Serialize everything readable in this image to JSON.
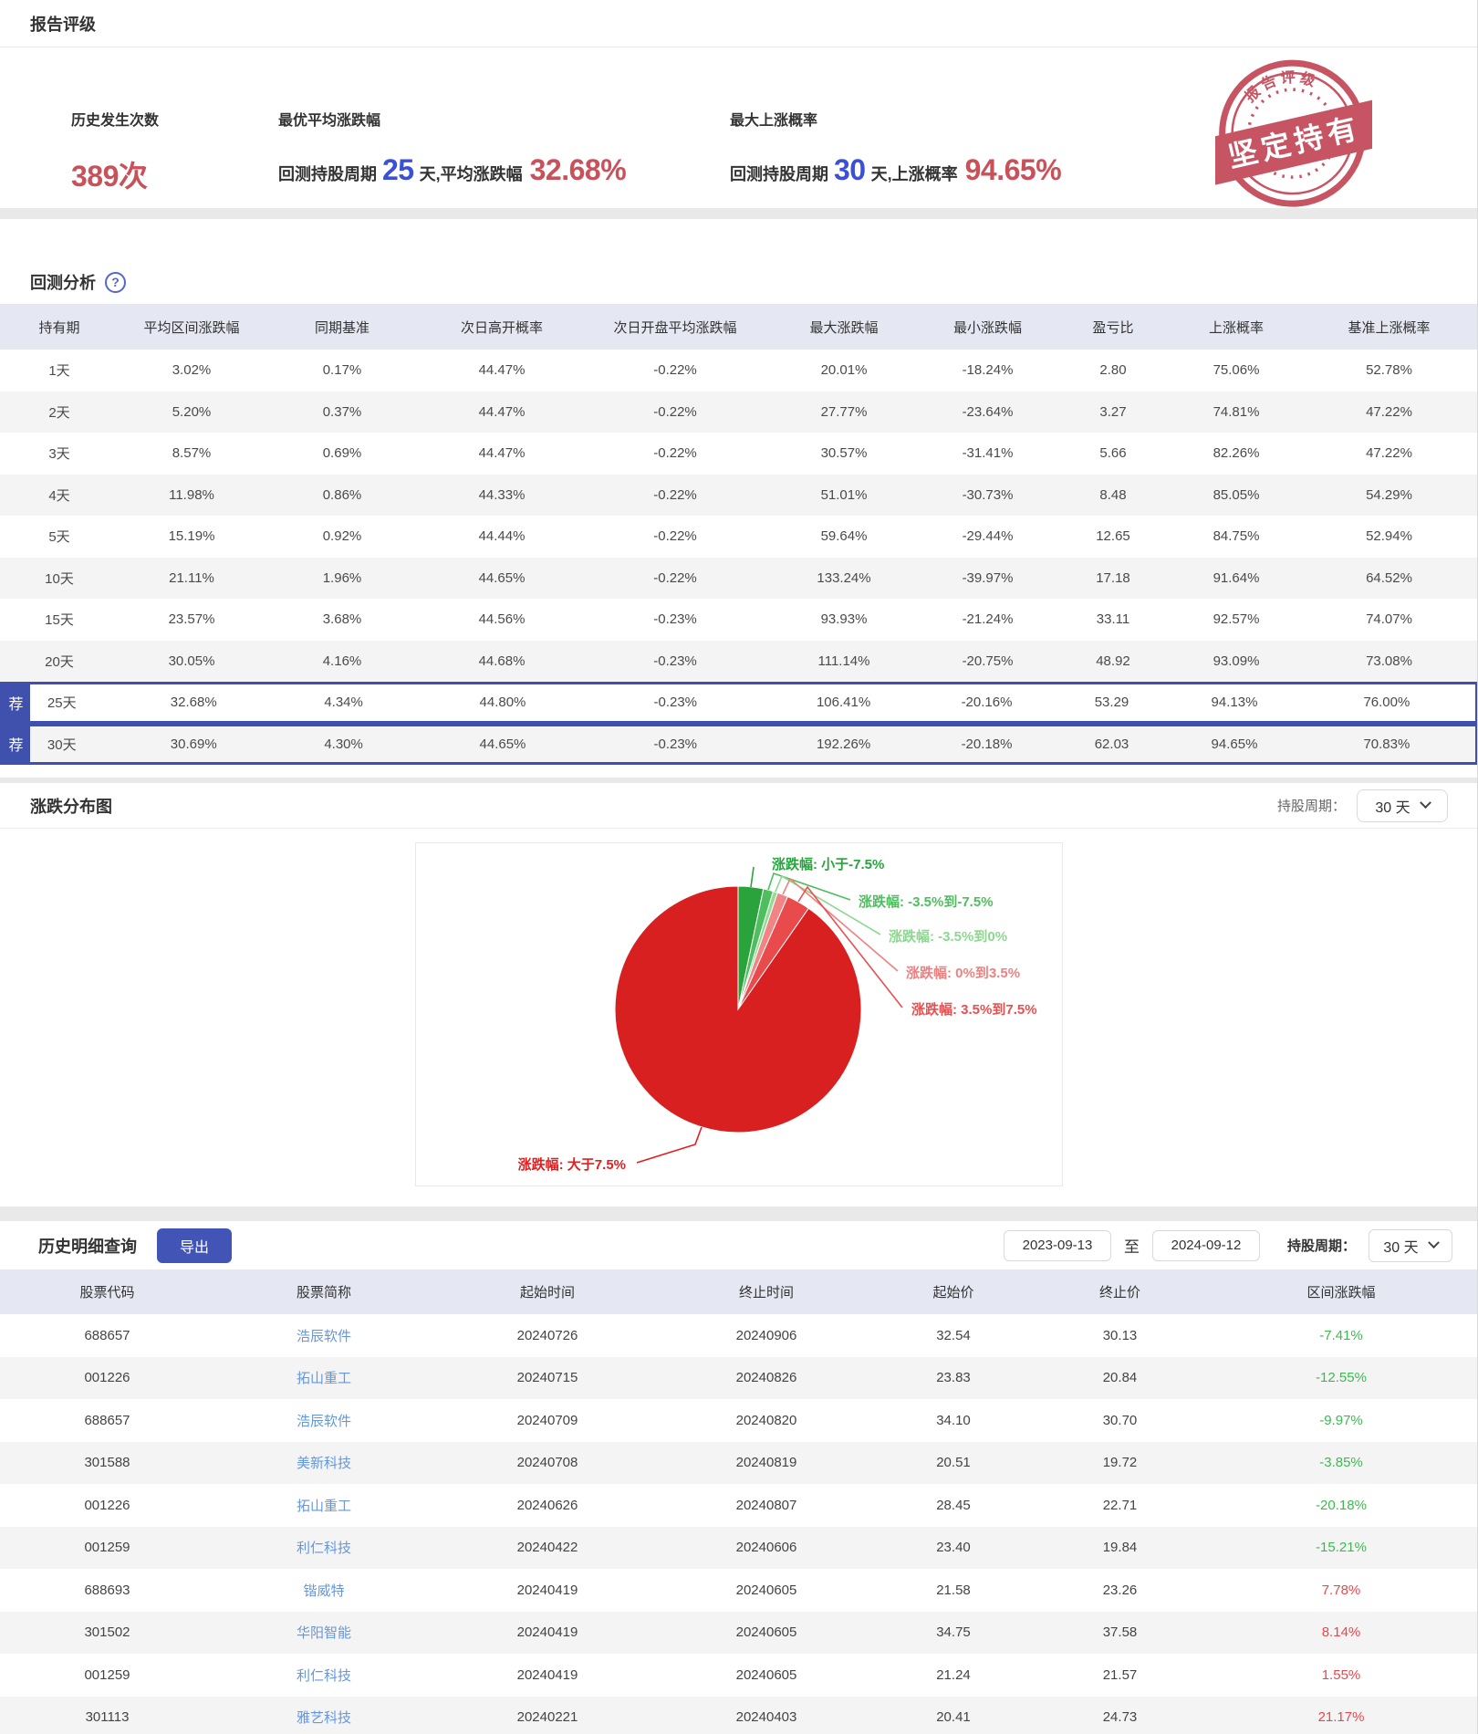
{
  "rating": {
    "section_title": "报告评级",
    "stats": {
      "occurrences": {
        "label": "历史发生次数",
        "value": "389次"
      },
      "best_avg": {
        "label": "最优平均涨跌幅",
        "prefix": "回测持股周期",
        "days": "25",
        "mid": "天,平均涨跌幅",
        "value": "32.68%"
      },
      "max_prob": {
        "label": "最大上涨概率",
        "prefix": "回测持股周期",
        "days": "30",
        "mid": "天,上涨概率",
        "value": "94.65%"
      }
    },
    "stamp": {
      "arc_text": "报告评级",
      "banner": "坚定持有",
      "color": "#bf3b4b"
    }
  },
  "backtest": {
    "section_title": "回测分析",
    "help_glyph": "?",
    "badge": "荐",
    "headers": [
      "持有期",
      "平均区间涨跌幅",
      "同期基准",
      "次日高开概率",
      "次日开盘平均涨跌幅",
      "最大涨跌幅",
      "最小涨跌幅",
      "盈亏比",
      "上涨概率",
      "基准上涨概率"
    ],
    "rows": [
      {
        "period": "1天",
        "values": [
          "3.02%",
          "0.17%",
          "44.47%",
          "-0.22%",
          "20.01%",
          "-18.24%",
          "2.80",
          "75.06%",
          "52.78%"
        ],
        "recommended": false
      },
      {
        "period": "2天",
        "values": [
          "5.20%",
          "0.37%",
          "44.47%",
          "-0.22%",
          "27.77%",
          "-23.64%",
          "3.27",
          "74.81%",
          "47.22%"
        ],
        "recommended": false
      },
      {
        "period": "3天",
        "values": [
          "8.57%",
          "0.69%",
          "44.47%",
          "-0.22%",
          "30.57%",
          "-31.41%",
          "5.66",
          "82.26%",
          "47.22%"
        ],
        "recommended": false
      },
      {
        "period": "4天",
        "values": [
          "11.98%",
          "0.86%",
          "44.33%",
          "-0.22%",
          "51.01%",
          "-30.73%",
          "8.48",
          "85.05%",
          "54.29%"
        ],
        "recommended": false
      },
      {
        "period": "5天",
        "values": [
          "15.19%",
          "0.92%",
          "44.44%",
          "-0.22%",
          "59.64%",
          "-29.44%",
          "12.65",
          "84.75%",
          "52.94%"
        ],
        "recommended": false
      },
      {
        "period": "10天",
        "values": [
          "21.11%",
          "1.96%",
          "44.65%",
          "-0.22%",
          "133.24%",
          "-39.97%",
          "17.18",
          "91.64%",
          "64.52%"
        ],
        "recommended": false
      },
      {
        "period": "15天",
        "values": [
          "23.57%",
          "3.68%",
          "44.56%",
          "-0.23%",
          "93.93%",
          "-21.24%",
          "33.11",
          "92.57%",
          "74.07%"
        ],
        "recommended": false
      },
      {
        "period": "20天",
        "values": [
          "30.05%",
          "4.16%",
          "44.68%",
          "-0.23%",
          "111.14%",
          "-20.75%",
          "48.92",
          "93.09%",
          "73.08%"
        ],
        "recommended": false
      },
      {
        "period": "25天",
        "values": [
          "32.68%",
          "4.34%",
          "44.80%",
          "-0.23%",
          "106.41%",
          "-20.16%",
          "53.29",
          "94.13%",
          "76.00%"
        ],
        "recommended": true
      },
      {
        "period": "30天",
        "values": [
          "30.69%",
          "4.30%",
          "44.65%",
          "-0.23%",
          "192.26%",
          "-20.18%",
          "62.03",
          "94.65%",
          "70.83%"
        ],
        "recommended": true
      }
    ]
  },
  "distribution": {
    "section_title": "涨跌分布图",
    "period_label": "持股周期：",
    "period_value": "30 天"
  },
  "chart_data": {
    "type": "pie",
    "title": "涨跌分布图",
    "direction": "clockwise",
    "start_angle_deg": 0,
    "legend_position": "callout-labels",
    "slices": [
      {
        "label": "涨跌幅: 小于-7.5%",
        "value": 3.3,
        "color": "#2aa33c",
        "label_color": "#27a53d"
      },
      {
        "label": "涨跌幅: -3.5%到-7.5%",
        "value": 1.3,
        "color": "#4fbe5f",
        "label_color": "#4fbe5f"
      },
      {
        "label": "涨跌幅: -3.5%到0%",
        "value": 0.6,
        "color": "#93dc96",
        "label_color": "#8bd88e"
      },
      {
        "label": "涨跌幅: 0%到3.5%",
        "value": 1.4,
        "color": "#f18585",
        "label_color": "#f08080"
      },
      {
        "label": "涨跌幅: 3.5%到7.5%",
        "value": 3.1,
        "color": "#e94b4d",
        "label_color": "#ea4f4f"
      },
      {
        "label": "涨跌幅: 大于7.5%",
        "value": 90.3,
        "color": "#d7201f",
        "label_color": "#e02020"
      }
    ]
  },
  "history": {
    "section_title": "历史明细查询",
    "export_label": "导出",
    "date_from": "2023-09-13",
    "to_label": "至",
    "date_to": "2024-09-12",
    "period_label": "持股周期：",
    "period_value": "30 天",
    "headers": [
      "股票代码",
      "股票简称",
      "起始时间",
      "终止时间",
      "起始价",
      "终止价",
      "区间涨跌幅"
    ],
    "rows": [
      {
        "code": "688657",
        "name": "浩辰软件",
        "start": "20240726",
        "end": "20240906",
        "start_price": "32.54",
        "end_price": "30.13",
        "change": "-7.41%",
        "dir": "down"
      },
      {
        "code": "001226",
        "name": "拓山重工",
        "start": "20240715",
        "end": "20240826",
        "start_price": "23.83",
        "end_price": "20.84",
        "change": "-12.55%",
        "dir": "down"
      },
      {
        "code": "688657",
        "name": "浩辰软件",
        "start": "20240709",
        "end": "20240820",
        "start_price": "34.10",
        "end_price": "30.70",
        "change": "-9.97%",
        "dir": "down"
      },
      {
        "code": "301588",
        "name": "美新科技",
        "start": "20240708",
        "end": "20240819",
        "start_price": "20.51",
        "end_price": "19.72",
        "change": "-3.85%",
        "dir": "down"
      },
      {
        "code": "001226",
        "name": "拓山重工",
        "start": "20240626",
        "end": "20240807",
        "start_price": "28.45",
        "end_price": "22.71",
        "change": "-20.18%",
        "dir": "down"
      },
      {
        "code": "001259",
        "name": "利仁科技",
        "start": "20240422",
        "end": "20240606",
        "start_price": "23.40",
        "end_price": "19.84",
        "change": "-15.21%",
        "dir": "down"
      },
      {
        "code": "688693",
        "name": "锴威特",
        "start": "20240419",
        "end": "20240605",
        "start_price": "21.58",
        "end_price": "23.26",
        "change": "7.78%",
        "dir": "up"
      },
      {
        "code": "301502",
        "name": "华阳智能",
        "start": "20240419",
        "end": "20240605",
        "start_price": "34.75",
        "end_price": "37.58",
        "change": "8.14%",
        "dir": "up"
      },
      {
        "code": "001259",
        "name": "利仁科技",
        "start": "20240419",
        "end": "20240605",
        "start_price": "21.24",
        "end_price": "21.57",
        "change": "1.55%",
        "dir": "up"
      },
      {
        "code": "301113",
        "name": "雅艺科技",
        "start": "20240221",
        "end": "20240403",
        "start_price": "20.41",
        "end_price": "24.73",
        "change": "21.17%",
        "dir": "up"
      }
    ]
  }
}
